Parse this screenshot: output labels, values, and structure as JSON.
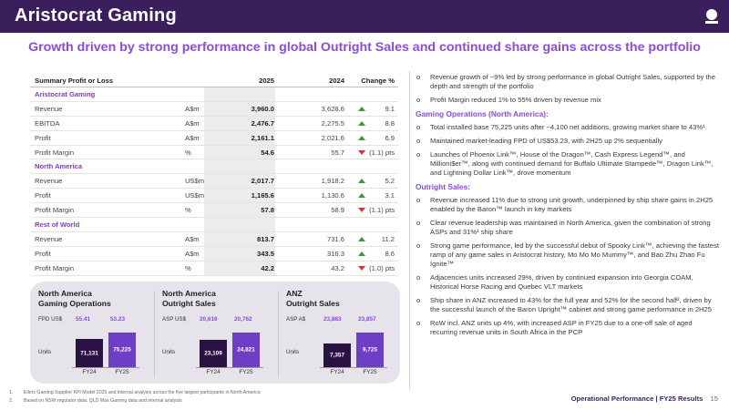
{
  "header": {
    "title": "Aristocrat Gaming",
    "logo_icon": "aristocrat-logo-icon",
    "color": "#3a1f5d"
  },
  "subtitle": "Growth driven by strong performance in global Outright Sales and continued share gains across the portfolio",
  "table": {
    "headers": {
      "metric": "Summary Profit or Loss",
      "unit": "",
      "y2025": "2025",
      "y2024": "2024",
      "change": "Change %"
    },
    "rows": [
      {
        "type": "section",
        "metric": "Aristocrat Gaming"
      },
      {
        "type": "row",
        "metric": "Revenue",
        "unit": "A$m",
        "y2025": "3,960.0",
        "y2024": "3,628.6",
        "dir": "up",
        "change": "9.1"
      },
      {
        "type": "row",
        "metric": "EBITDA",
        "unit": "A$m",
        "y2025": "2,476.7",
        "y2024": "2,275.5",
        "dir": "up",
        "change": "8.8"
      },
      {
        "type": "row",
        "metric": "Profit",
        "unit": "A$m",
        "y2025": "2,161.1",
        "y2024": "2,021.6",
        "dir": "up",
        "change": "6.9"
      },
      {
        "type": "row",
        "metric": "Profit Margin",
        "unit": "%",
        "y2025": "54.6",
        "y2024": "55.7",
        "dir": "down",
        "change": "(1.1) pts"
      },
      {
        "type": "section",
        "metric": "North America"
      },
      {
        "type": "row",
        "metric": "Revenue",
        "unit": "US$m",
        "y2025": "2,017.7",
        "y2024": "1,918.2",
        "dir": "up",
        "change": "5.2"
      },
      {
        "type": "row",
        "metric": "Profit",
        "unit": "US$m",
        "y2025": "1,165.6",
        "y2024": "1,130.6",
        "dir": "up",
        "change": "3.1"
      },
      {
        "type": "row",
        "metric": "Profit Margin",
        "unit": "%",
        "y2025": "57.8",
        "y2024": "58.9",
        "dir": "down",
        "change": "(1.1) pts"
      },
      {
        "type": "section",
        "metric": "Rest of World"
      },
      {
        "type": "row",
        "metric": "Revenue",
        "unit": "A$m",
        "y2025": "813.7",
        "y2024": "731.6",
        "dir": "up",
        "change": "11.2"
      },
      {
        "type": "row",
        "metric": "Profit",
        "unit": "A$m",
        "y2025": "343.5",
        "y2024": "316.3",
        "dir": "up",
        "change": "8.6"
      },
      {
        "type": "row",
        "metric": "Profit Margin",
        "unit": "%",
        "y2025": "42.2",
        "y2024": "43.2",
        "dir": "down",
        "change": "(1.0) pts"
      }
    ]
  },
  "segments": [
    {
      "title_line1": "North America",
      "title_line2": "Gaming Operations",
      "tag": "FPD US$",
      "tag_v1": "55.41",
      "tag_v2": "53.23",
      "units_label": "Units",
      "fy24_value": 71131,
      "fy24_label_value": "71,131",
      "fy25_value": 75225,
      "fy25_label_value": "75,225",
      "fy24_label": "FY24",
      "fy25_label": "FY25"
    },
    {
      "title_line1": "North America",
      "title_line2": "Outright Sales",
      "tag": "ASP US$",
      "tag_v1": "20,616",
      "tag_v2": "20,762",
      "units_label": "Units",
      "fy24_value": 23109,
      "fy24_label_value": "23,109",
      "fy25_value": 24821,
      "fy25_label_value": "24,821",
      "fy24_label": "FY24",
      "fy25_label": "FY25"
    },
    {
      "title_line1": "ANZ",
      "title_line2": "Outright Sales",
      "tag": "ASP A$",
      "tag_v1": "23,883",
      "tag_v2": "23,857",
      "units_label": "Units",
      "fy24_value": 7357,
      "fy24_label_value": "7,357",
      "fy25_value": 9725,
      "fy25_label_value": "9,725",
      "fy24_label": "FY24",
      "fy25_label": "FY25"
    }
  ],
  "right": {
    "top_bullets": [
      "Revenue growth of ~9% led by strong performance in global Outright Sales, supported by the depth and strength of the portfolio",
      "Profit Margin reduced 1% to 55% driven by revenue mix"
    ],
    "gaming_ops_heading": "Gaming Operations (North America):",
    "gaming_ops_bullets": [
      "Total installed base 75,225 units after ~4,100 net additions, growing market share to 43%¹",
      "Maintained market-leading FPD of US$53.23, with 2H25 up 2% sequentially",
      "Launches of Phoenix Link™, House of the Dragon™, Cash Express Legend™, and Millioni$er™, along with continued demand for Buffalo Ultimate Stampede™, Dragon Link™, and Lightning Dollar Link™, drove momentum"
    ],
    "outright_heading": "Outright Sales:",
    "outright_bullets": [
      "Revenue increased 11% due to strong unit growth, underpinned by ship share gains in 2H25 enabled by the Baron™ launch in key markets",
      "Clear revenue leadership was maintained in North America, given the combination of strong ASPs and 31%¹ ship share",
      "Strong game performance, led by the successful debut of Spooky Link™, achieving the fastest ramp of any game sales in Aristocrat history, Mo Mo Mo Mummy™, and Bao Zhu Zhao Fu Ignite™",
      "Adjacencies units increased 29%, driven by continued expansion into Georgia COAM, Historical Horse Racing and Quebec VLT markets",
      "Ship share in ANZ increased to 43% for the full year and 52% for the second half², driven by the successful launch of the Baron Upright™ cabinet and strong game performance in 2H25",
      "RoW incl. ANZ units up 4%, with increased ASP in FY25 due to a one-off sale of aged recurring revenue units in South Africa in the PCP"
    ]
  },
  "footnotes": [
    {
      "n": "1.",
      "text": "Eilers Gaming Supplier KPI Model 2025 and internal analysis across the five largest participants in North America"
    },
    {
      "n": "2.",
      "text": "Based on NSW regulator data, QLD Max Gaming data and internal analysis"
    }
  ],
  "footer": {
    "section": "Operational Performance",
    "separator": "|",
    "doc": "FY25 Results",
    "page": "15"
  },
  "colors": {
    "accent": "#8a4be0",
    "fy24_bar": "#2a1244",
    "fy25_bar": "#6e3fc6",
    "up": "#2e9e45",
    "down": "#e0303a"
  }
}
